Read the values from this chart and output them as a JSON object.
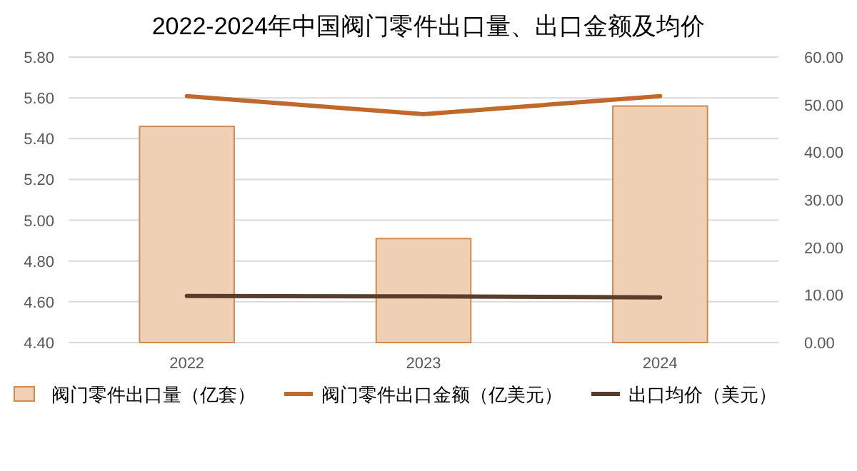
{
  "chart_data": {
    "type": "bar",
    "title": "2022-2024年中国阀门零件出口量、出口金额及均价",
    "categories": [
      "2022",
      "2023",
      "2024"
    ],
    "series": [
      {
        "name": "阀门零件出口量（亿套）",
        "color": "#f0d0b4",
        "values": [
          5.46,
          4.91,
          5.56
        ]
      },
      {
        "name": "阀门零件出口金额（亿美元）",
        "type": "line",
        "axis": "y2",
        "color": "#c0692a",
        "values": [
          51.8,
          48.0,
          51.8
        ]
      },
      {
        "name": "出口均价（美元）",
        "type": "line",
        "axis": "y2",
        "color": "#5a3e2b",
        "values": [
          9.8,
          9.7,
          9.5
        ]
      }
    ],
    "ylim": [
      4.4,
      5.8
    ],
    "yticks": [
      {
        "value": 4.4,
        "label": "4.40"
      },
      {
        "value": 4.6,
        "label": "4.60"
      },
      {
        "value": 4.8,
        "label": "4.80"
      },
      {
        "value": 5.0,
        "label": "5.00"
      },
      {
        "value": 5.2,
        "label": "5.20"
      },
      {
        "value": 5.4,
        "label": "5.40"
      },
      {
        "value": 5.6,
        "label": "5.60"
      },
      {
        "value": 5.8,
        "label": "5.80"
      }
    ],
    "y2lim": [
      0,
      60
    ],
    "y2ticks": [
      {
        "value": 0,
        "label": "0.00"
      },
      {
        "value": 10,
        "label": "10.00"
      },
      {
        "value": 20,
        "label": "20.00"
      },
      {
        "value": 30,
        "label": "30.00"
      },
      {
        "value": 40,
        "label": "40.00"
      },
      {
        "value": 50,
        "label": "50.00"
      },
      {
        "value": 60,
        "label": "60.00"
      }
    ],
    "grid": "y",
    "legend": "bottom",
    "marker": "none"
  }
}
